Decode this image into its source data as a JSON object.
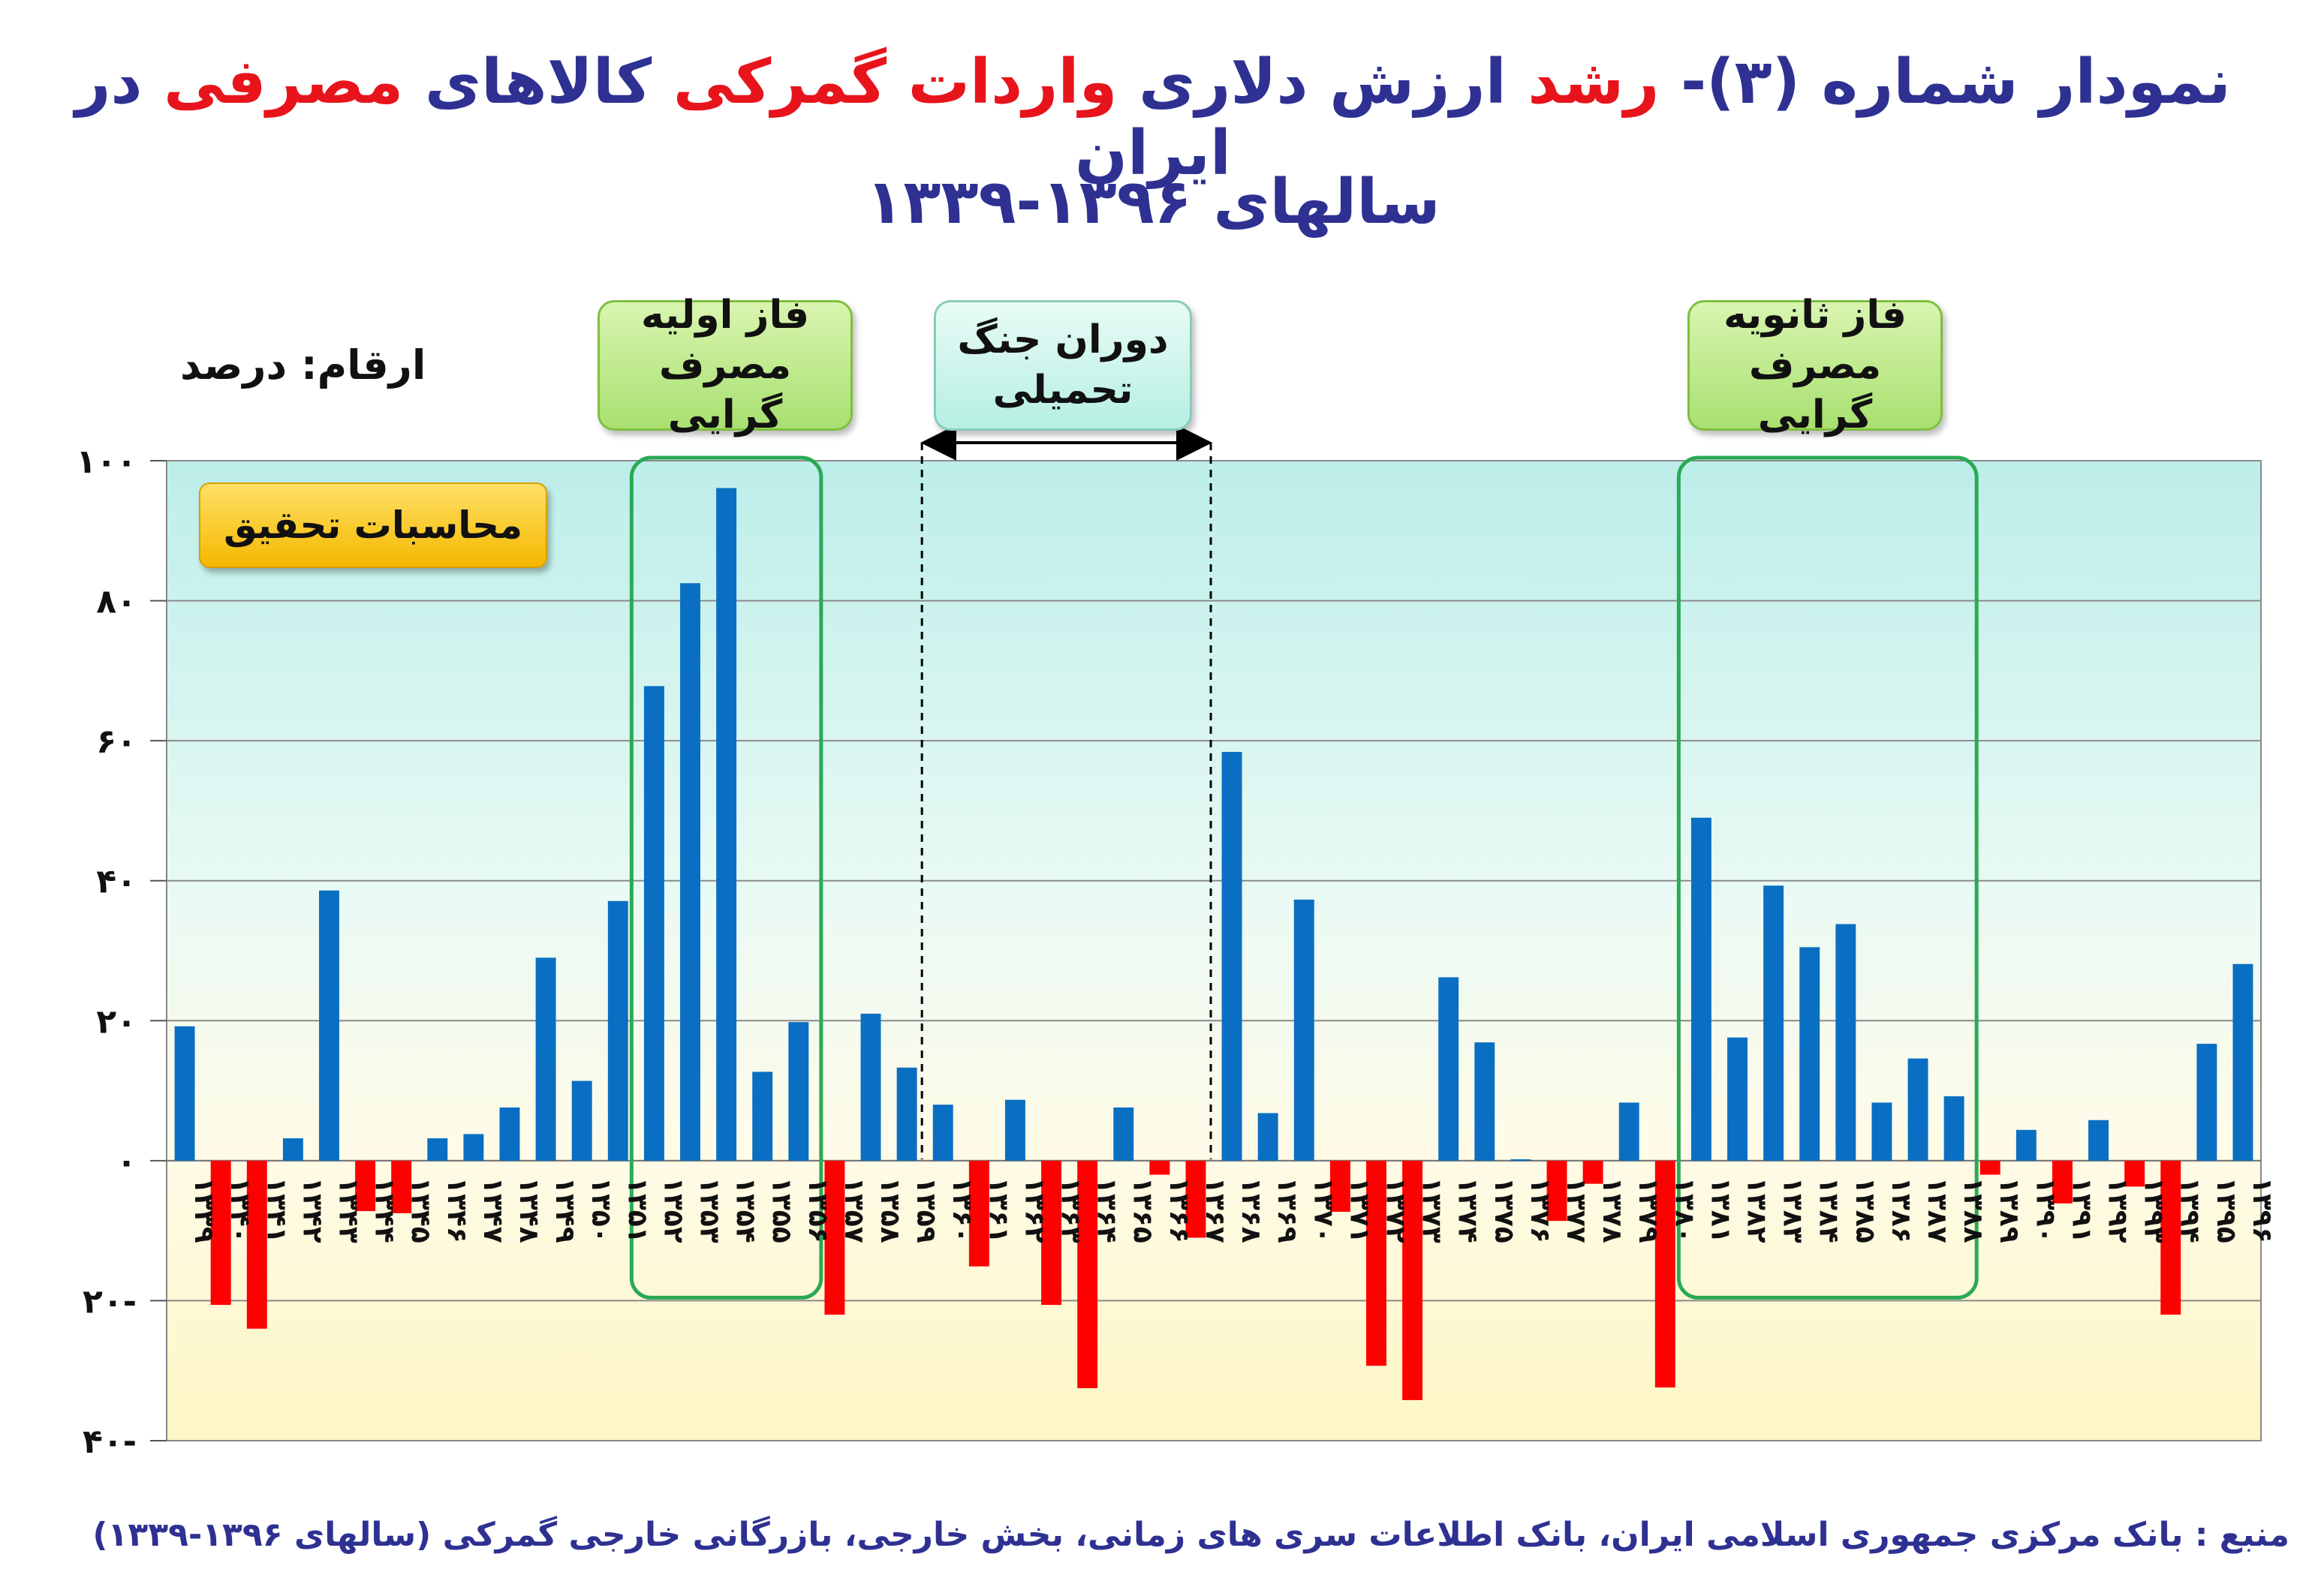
{
  "title": {
    "line1_parts": [
      "نمودار شماره (۳)- ",
      "رشد",
      " ارزش دلاری ",
      "واردات گمرکی",
      " کالاهای ",
      "مصرفی",
      " در ایران"
    ],
    "line2": "سالهای ۱۳۹۶-۱۳۳۹"
  },
  "unit_label": "ارقام: درصد",
  "callouts": {
    "primary_line1": "فاز اولیه",
    "primary_line2": "مصرف گرایی",
    "war_line1": "دوران جنگ",
    "war_line2": "تحمیلی",
    "secondary_line1": "فاز ثانویه",
    "secondary_line2": "مصرف گرایی"
  },
  "badge": "محاسبات تحقیق",
  "source": "منبع : بانک مرکزی جمهوری اسلامی ایران، بانک اطلاعات سری های زمانی، بخش خارجی، بازرگانی خارجی گمرکی (سالهای ۱۳۹۶-۱۳۳۹)",
  "colors": {
    "positive": "#0a6fc2",
    "negative": "#ff0000",
    "title": "#2e3192",
    "highlight": "#e8141c",
    "phase_box": "#2aaa55"
  },
  "chart_data": {
    "type": "bar",
    "ylim": [
      -40,
      100
    ],
    "yticks": [
      -40,
      -20,
      0,
      20,
      40,
      60,
      80,
      100
    ],
    "ytick_labels": [
      "۴۰-",
      "۲۰-",
      "۰",
      "۲۰",
      "۴۰",
      "۶۰",
      "۸۰",
      "۱۰۰"
    ],
    "categories": [
      "۱۳۳۹",
      "۱۳۴۰",
      "۱۳۴۱",
      "۱۳۴۲",
      "۱۳۴۳",
      "۱۳۴۴",
      "۱۳۴۵",
      "۱۳۴۶",
      "۱۳۴۷",
      "۱۳۴۸",
      "۱۳۴۹",
      "۱۳۵۰",
      "۱۳۵۱",
      "۱۳۵۲",
      "۱۳۵۳",
      "۱۳۵۴",
      "۱۳۵۵",
      "۱۳۵۶",
      "۱۳۵۷",
      "۱۳۵۸",
      "۱۳۵۹",
      "۱۳۶۰",
      "۱۳۶۱",
      "۱۳۶۲",
      "۱۳۶۳",
      "۱۳۶۴",
      "۱۳۶۵",
      "۱۳۶۶",
      "۱۳۶۷",
      "۱۳۶۸",
      "۱۳۶۹",
      "۱۳۷۰",
      "۱۳۷۱",
      "۱۳۷۲",
      "۱۳۷۳",
      "۱۳۷۴",
      "۱۳۷۵",
      "۱۳۷۶",
      "۱۳۷۷",
      "۱۳۷۸",
      "۱۳۷۹",
      "۱۳۸۰",
      "۱۳۸۱",
      "۱۳۸۲",
      "۱۳۸۳",
      "۱۳۸۴",
      "۱۳۸۵",
      "۱۳۸۶",
      "۱۳۸۷",
      "۱۳۸۸",
      "۱۳۸۹",
      "۱۳۹۰",
      "۱۳۹۱",
      "۱۳۹۲",
      "۱۳۹۳",
      "۱۳۹۴",
      "۱۳۹۵",
      "۱۳۹۶"
    ],
    "values": [
      19.2,
      -20.6,
      -24,
      3.2,
      38.6,
      -7.2,
      -7.5,
      3.2,
      3.8,
      7.6,
      29,
      11.4,
      37.1,
      67.8,
      82.5,
      96.1,
      12.7,
      19.8,
      -22,
      21,
      13.3,
      8,
      -15.1,
      8.7,
      -20.6,
      -32.5,
      7.6,
      -2,
      -11,
      58.4,
      6.8,
      37.3,
      -7.3,
      -29.3,
      -34.2,
      26.2,
      16.9,
      0.2,
      -8.6,
      -3.3,
      8.3,
      -32.4,
      49,
      17.6,
      39.3,
      30.5,
      33.8,
      8.3,
      14.6,
      9.2,
      -2,
      4.4,
      -6.1,
      5.8,
      -3.7,
      -22,
      16.7,
      28.1
    ],
    "phases": [
      {
        "start": "۱۳۵۲",
        "end": "۱۳۵۶"
      },
      {
        "start": "۱۳۶۰",
        "end": "۱۳۶۷"
      },
      {
        "start": "۱۳۸۱",
        "end": "۱۳۸۸"
      }
    ],
    "grid": true
  }
}
